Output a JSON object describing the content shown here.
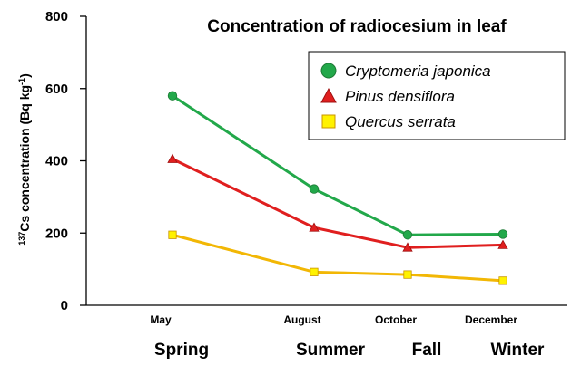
{
  "chart_data": {
    "type": "line",
    "title": "Concentration of radiocesium in leaf",
    "ylabel": "137Cs concentration (Bq kg-1)",
    "ylabel_parts": {
      "superscript_pre": "137",
      "main": "Cs concentration (Bq kg",
      "superscript_post": "-1",
      "close": ")"
    },
    "ylim": [
      0,
      800
    ],
    "yticks": [
      "0",
      "200",
      "400",
      "600",
      "800"
    ],
    "ytick_values": [
      0,
      200,
      400,
      600,
      800
    ],
    "categories": [
      "May",
      "August",
      "October",
      "December"
    ],
    "x": [
      5,
      8,
      10,
      12
    ],
    "seasons": [
      "Spring",
      "Summer",
      "Fall",
      "Winter"
    ],
    "legend_position": "top-right",
    "grid": false,
    "series": [
      {
        "name": "Cryptomeria japonica",
        "values": [
          580,
          322,
          195,
          197
        ],
        "color": "#22A84A",
        "marker": "circle"
      },
      {
        "name": "Pinus densiflora",
        "values": [
          405,
          215,
          160,
          167
        ],
        "color": "#E01F1F",
        "marker": "triangle"
      },
      {
        "name": "Quercus serrata",
        "values": [
          195,
          92,
          85,
          68
        ],
        "color": "#F2B705",
        "marker": "square",
        "marker_fill": "#FFF200"
      }
    ]
  }
}
